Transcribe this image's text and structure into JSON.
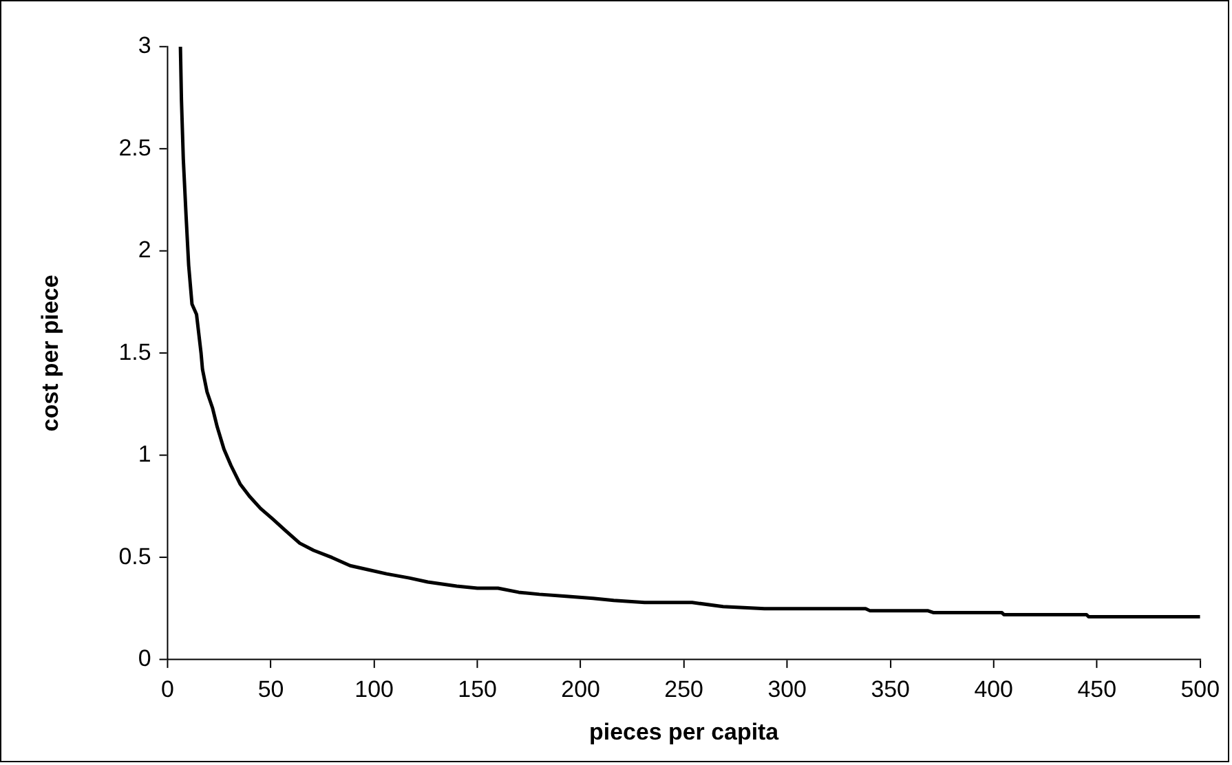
{
  "chart_data": {
    "type": "line",
    "xlabel": "pieces per capita",
    "ylabel": "cost per piece",
    "xlim": [
      0,
      500
    ],
    "xticks": [
      0,
      50,
      100,
      150,
      200,
      250,
      300,
      350,
      400,
      450,
      500
    ],
    "ylim": [
      0,
      3
    ],
    "yticks": [
      0,
      0.5,
      1,
      1.5,
      2,
      2.5,
      3
    ],
    "grid": false,
    "legend": false,
    "marker": "none",
    "line_style": "solid",
    "series": [
      {
        "color": "#000000",
        "x": [
          6.2,
          6.7,
          7.6,
          8.9,
          10.2,
          11.8,
          14,
          16.2,
          16.9,
          19.1,
          21.8,
          24,
          27.3,
          30.7,
          35.1,
          39.6,
          45,
          50.7,
          57.3,
          64,
          70.7,
          79.6,
          88.4,
          97.3,
          106,
          117,
          126,
          140,
          150,
          160,
          170,
          180,
          193,
          206,
          216,
          231,
          254,
          269,
          289,
          338,
          340,
          368,
          371,
          404,
          405,
          445,
          446,
          500
        ],
        "values": [
          3.0,
          2.74,
          2.45,
          2.18,
          1.93,
          1.74,
          1.69,
          1.5,
          1.42,
          1.31,
          1.23,
          1.14,
          1.03,
          0.95,
          0.86,
          0.8,
          0.74,
          0.69,
          0.63,
          0.57,
          0.535,
          0.5,
          0.46,
          0.44,
          0.42,
          0.4,
          0.38,
          0.36,
          0.35,
          0.35,
          0.33,
          0.32,
          0.31,
          0.3,
          0.29,
          0.28,
          0.28,
          0.26,
          0.25,
          0.25,
          0.24,
          0.24,
          0.23,
          0.23,
          0.22,
          0.22,
          0.21,
          0.21
        ]
      }
    ]
  }
}
